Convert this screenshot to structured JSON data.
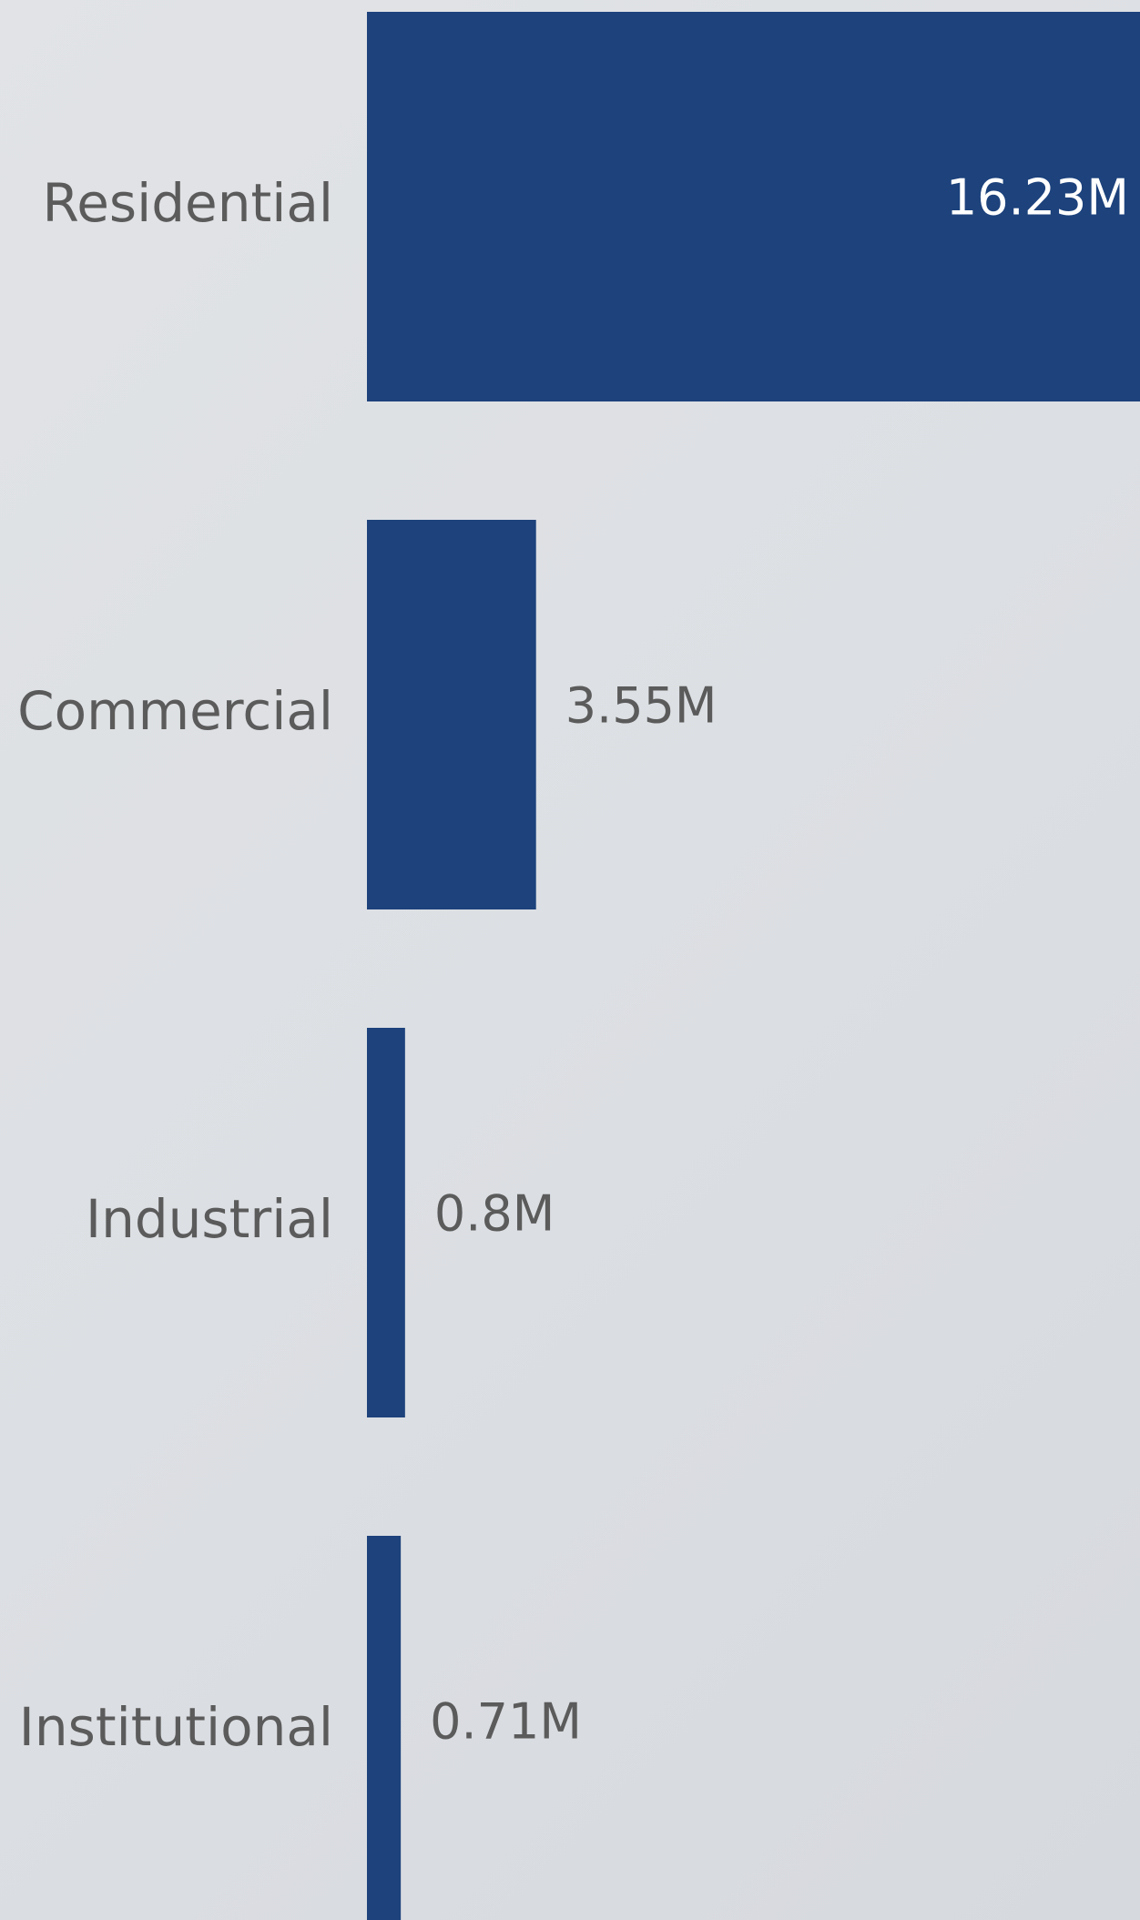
{
  "chart_data": {
    "type": "bar",
    "orientation": "horizontal",
    "categories": [
      "Residential",
      "Commercial",
      "Industrial",
      "Institutional"
    ],
    "values": [
      16.23,
      3.55,
      0.8,
      0.71
    ],
    "value_labels": [
      "16.23M",
      "3.55M",
      "0.8M",
      "0.71M"
    ],
    "title": "",
    "xlabel": "",
    "ylabel": "",
    "xlim": [
      0,
      16.23
    ],
    "grid": false,
    "legend": "none"
  },
  "colors": {
    "bar": "#1d427c",
    "label_text": "#5b5b5b",
    "inside_value_text": "#ffffff"
  }
}
